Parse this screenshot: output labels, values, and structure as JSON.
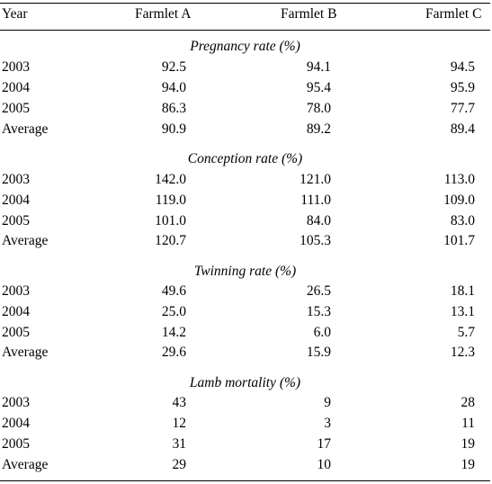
{
  "table": {
    "headers": {
      "year": "Year",
      "farmlet_a": "Farmlet A",
      "farmlet_b": "Farmlet B",
      "farmlet_c": "Farmlet C"
    },
    "sections": [
      {
        "title": "Pregnancy rate (%)",
        "rows": [
          {
            "year": "2003",
            "a": "92.5",
            "b": "94.1",
            "c": "94.5"
          },
          {
            "year": "2004",
            "a": "94.0",
            "b": "95.4",
            "c": "95.9"
          },
          {
            "year": "2005",
            "a": "86.3",
            "b": "78.0",
            "c": "77.7"
          },
          {
            "year": "Average",
            "a": "90.9",
            "b": "89.2",
            "c": "89.4"
          }
        ]
      },
      {
        "title": "Conception rate (%)",
        "rows": [
          {
            "year": "2003",
            "a": "142.0",
            "b": "121.0",
            "c": "113.0"
          },
          {
            "year": "2004",
            "a": "119.0",
            "b": "111.0",
            "c": "109.0"
          },
          {
            "year": "2005",
            "a": "101.0",
            "b": "84.0",
            "c": "83.0"
          },
          {
            "year": "Average",
            "a": "120.7",
            "b": "105.3",
            "c": "101.7"
          }
        ]
      },
      {
        "title": "Twinning rate (%)",
        "rows": [
          {
            "year": "2003",
            "a": "49.6",
            "b": "26.5",
            "c": "18.1"
          },
          {
            "year": "2004",
            "a": "25.0",
            "b": "15.3",
            "c": "13.1"
          },
          {
            "year": "2005",
            "a": "14.2",
            "b": "6.0",
            "c": "5.7"
          },
          {
            "year": "Average",
            "a": "29.6",
            "b": "15.9",
            "c": "12.3"
          }
        ]
      },
      {
        "title": "Lamb mortality (%)",
        "rows": [
          {
            "year": "2003",
            "a": "43",
            "b": "9",
            "c": "28"
          },
          {
            "year": "2004",
            "a": "12",
            "b": "3",
            "c": "11"
          },
          {
            "year": "2005",
            "a": "31",
            "b": "17",
            "c": "19"
          },
          {
            "year": "Average",
            "a": "29",
            "b": "10",
            "c": "19"
          }
        ]
      }
    ]
  }
}
